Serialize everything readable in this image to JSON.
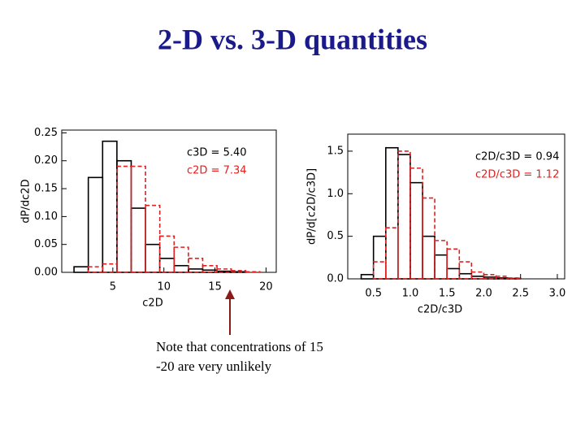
{
  "slide": {
    "title": "2-D vs. 3-D quantities",
    "note": [
      "Note that concentrations of 15",
      "-20 are very unlikely"
    ]
  },
  "chart_data": [
    {
      "type": "histogram",
      "x_label": "c2D",
      "y_label": "dP/dc2D",
      "bins": [
        1.2,
        2.6,
        4.0,
        5.4,
        6.8,
        8.2,
        9.6,
        11.0,
        12.4,
        13.8,
        15.2,
        16.6,
        18.0,
        19.4
      ],
      "series": [
        {
          "name": "c3D = 5.40",
          "color": "#000000",
          "dash": false,
          "values": [
            0.01,
            0.17,
            0.235,
            0.2,
            0.115,
            0.05,
            0.025,
            0.012,
            0.006,
            0.004,
            0.002,
            0.001,
            0
          ]
        },
        {
          "name": "c2D = 7.34",
          "color": "#e02020",
          "dash": true,
          "values": [
            0,
            0.01,
            0.015,
            0.19,
            0.19,
            0.12,
            0.065,
            0.045,
            0.025,
            0.012,
            0.006,
            0.003,
            0.001
          ]
        }
      ],
      "xlim": [
        0,
        21
      ],
      "xticks": [
        5,
        10,
        15,
        20
      ],
      "ylim": [
        0,
        0.255
      ],
      "yticks": [
        {
          "value": 0,
          "label": "0.00"
        },
        0.05,
        {
          "value": 0.1,
          "label": "0.10"
        },
        0.15,
        {
          "value": 0.2,
          "label": "0.20"
        },
        0.25
      ]
    },
    {
      "type": "histogram",
      "x_label": "c2D/c3D",
      "y_label": "dP/d[c2D/c3D]",
      "bins": [
        0.333,
        0.5,
        0.667,
        0.833,
        1.0,
        1.167,
        1.333,
        1.5,
        1.667,
        1.833,
        2.0,
        2.167,
        2.333,
        2.5
      ],
      "series": [
        {
          "name": "c2D/c3D = 0.94",
          "color": "#000000",
          "dash": false,
          "values": [
            0.05,
            0.5,
            1.54,
            1.46,
            1.13,
            0.5,
            0.28,
            0.12,
            0.06,
            0.03,
            0.02,
            0.01,
            0.005
          ]
        },
        {
          "name": "c2D/c3D = 1.12",
          "color": "#e02020",
          "dash": true,
          "values": [
            0,
            0.2,
            0.6,
            1.5,
            1.3,
            0.95,
            0.45,
            0.35,
            0.2,
            0.08,
            0.05,
            0.03,
            0.01
          ]
        }
      ],
      "xlim": [
        0.15,
        3.1
      ],
      "xticks": [
        0.5,
        {
          "value": 1,
          "label": "1.0"
        },
        1.5,
        {
          "value": 2,
          "label": "2.0"
        },
        2.5,
        {
          "value": 3,
          "label": "3.0"
        }
      ],
      "ylim": [
        0,
        1.7
      ],
      "yticks": [
        {
          "value": 0,
          "label": "0.0"
        },
        0.5,
        {
          "value": 1,
          "label": "1.0"
        },
        1.5
      ]
    }
  ]
}
